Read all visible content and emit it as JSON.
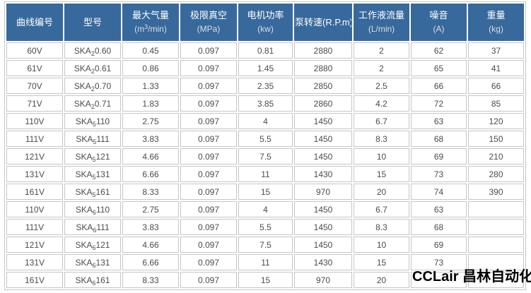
{
  "colors": {
    "header_bg": "#38699c",
    "header_text": "#ffffff",
    "cell_border": "#c6c6c6",
    "body_text": "#4c4c4c",
    "watermark_text": "#000000"
  },
  "watermark": {
    "text": "CCLair 昌林自动化"
  },
  "table": {
    "header": [
      {
        "title": "曲线编号"
      },
      {
        "title": "型号"
      },
      {
        "title": "最大气量",
        "unit_pre": "(m",
        "unit_sup": "3",
        "unit_post": "/min)"
      },
      {
        "title": "极限真空",
        "unit": "(MPa)"
      },
      {
        "title": "电机功率",
        "unit": "(kw)"
      },
      {
        "title": "泵转速(R.P.m)"
      },
      {
        "title": "工作液流量",
        "unit": "(L/min)"
      },
      {
        "title": "噪音",
        "unit": "(A)"
      },
      {
        "title": "重量",
        "unit": "(kg)"
      }
    ],
    "rows": [
      {
        "curve": "60V",
        "model": {
          "pre": "SKA",
          "sub": "2",
          "post": "0.60"
        },
        "values": [
          "0.45",
          "0.097",
          "0.81",
          "2880",
          "2",
          "62",
          "37"
        ]
      },
      {
        "curve": "61V",
        "model": {
          "pre": "SKA",
          "sub": "2",
          "post": "0.61"
        },
        "values": [
          "0.86",
          "0.097",
          "1.45",
          "2880",
          "2",
          "65",
          "41"
        ]
      },
      {
        "curve": "70V",
        "model": {
          "pre": "SKA",
          "sub": "2",
          "post": "0.70"
        },
        "values": [
          "1.33",
          "0.097",
          "2.35",
          "2850",
          "2.5",
          "66",
          "66"
        ]
      },
      {
        "curve": "71V",
        "model": {
          "pre": "SKA",
          "sub": "2",
          "post": "0.71"
        },
        "values": [
          "1.83",
          "0.097",
          "3.85",
          "2860",
          "4.2",
          "72",
          "85"
        ]
      },
      {
        "curve": "110V",
        "model": {
          "pre": "SKA",
          "sub": "5",
          "post": "110"
        },
        "values": [
          "2.75",
          "0.097",
          "4",
          "1450",
          "6.7",
          "63",
          "120"
        ]
      },
      {
        "curve": "111V",
        "model": {
          "pre": "SKA",
          "sub": "5",
          "post": "111"
        },
        "values": [
          "3.83",
          "0.097",
          "5.5",
          "1450",
          "8.3",
          "68",
          "150"
        ]
      },
      {
        "curve": "121V",
        "model": {
          "pre": "SKA",
          "sub": "5",
          "post": "121"
        },
        "values": [
          "4.66",
          "0.097",
          "7.5",
          "1450",
          "10",
          "69",
          "210"
        ]
      },
      {
        "curve": "131V",
        "model": {
          "pre": "SKA",
          "sub": "5",
          "post": "131"
        },
        "values": [
          "6.66",
          "0.097",
          "11",
          "1430",
          "15",
          "73",
          "280"
        ]
      },
      {
        "curve": "161V",
        "model": {
          "pre": "SKA",
          "sub": "5",
          "post": "161"
        },
        "values": [
          "8.33",
          "0.097",
          "15",
          "970",
          "20",
          "74",
          "390"
        ]
      },
      {
        "curve": "110V",
        "model": {
          "pre": "SKA",
          "sub": "6",
          "post": "110"
        },
        "values": [
          "2.75",
          "0.097",
          "4",
          "1450",
          "6.7",
          "63",
          ""
        ]
      },
      {
        "curve": "111V",
        "model": {
          "pre": "SKA",
          "sub": "6",
          "post": "111"
        },
        "values": [
          "3.83",
          "0.097",
          "5.5",
          "1450",
          "8.3",
          "68",
          ""
        ]
      },
      {
        "curve": "121V",
        "model": {
          "pre": "SKA",
          "sub": "6",
          "post": "121"
        },
        "values": [
          "4.66",
          "0.097",
          "7.5",
          "1450",
          "10",
          "69",
          ""
        ]
      },
      {
        "curve": "131V",
        "model": {
          "pre": "SKA",
          "sub": "6",
          "post": "131"
        },
        "values": [
          "6.66",
          "0.097",
          "11",
          "1430",
          "15",
          "73",
          ""
        ]
      },
      {
        "curve": "161V",
        "model": {
          "pre": "SKA",
          "sub": "6",
          "post": "161"
        },
        "values": [
          "8.33",
          "0.097",
          "15",
          "970",
          "20",
          "",
          ""
        ]
      }
    ]
  }
}
